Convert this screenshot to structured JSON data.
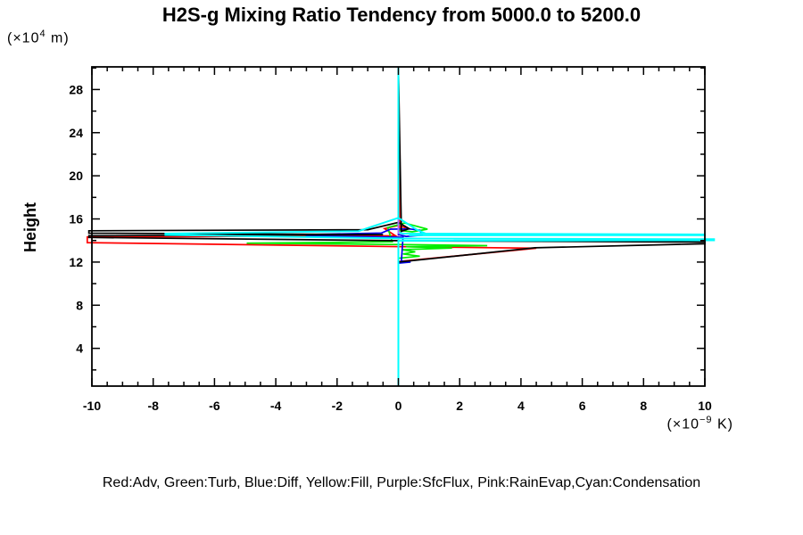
{
  "figure": {
    "title": "H2S-g Mixing Ratio Tendency from 5000.0 to 5200.0",
    "y_axis_title": "Height",
    "y_axis_unit": {
      "pre": "(×10",
      "sup": "4",
      "post": " m)"
    },
    "x_axis_unit": {
      "pre": "(×10",
      "sup": "−9",
      "post": " K)"
    },
    "legend_caption": "Red:Adv, Green:Turb, Blue:Diff, Yellow:Fill, Purple:SfcFlux, Pink:RainEvap,Cyan:Condensation"
  },
  "chart_data": {
    "type": "line",
    "title": "H2S-g Mixing Ratio Tendency from 5000.0 to 5200.0",
    "xlabel": "(x10^-9 K)",
    "ylabel": "Height (x10^4 m)",
    "xlim": [
      -10,
      10
    ],
    "ylim": [
      0.5,
      30.1
    ],
    "grid": false,
    "legend_position": "bottom-caption",
    "x_ticks": {
      "major": [
        -10,
        -8,
        -6,
        -4,
        -2,
        0,
        2,
        4,
        6,
        8,
        10
      ],
      "labels": [
        "-10",
        "-8",
        "-6",
        "-4",
        "-2",
        "0",
        "2",
        "4",
        "6",
        "8",
        "10"
      ],
      "minor_step": 0.5
    },
    "y_ticks": {
      "major": [
        4,
        8,
        12,
        16,
        20,
        24,
        28
      ],
      "labels": [
        "4",
        "8",
        "12",
        "16",
        "20",
        "24",
        "28"
      ],
      "minor": [
        2,
        6,
        10,
        14,
        18,
        22,
        26,
        30
      ]
    },
    "draw_order": [
      "Fill",
      "RainEvap",
      "Adv",
      "Turb",
      "Diff",
      "Black",
      "Condensation",
      "SfcFlux"
    ],
    "series": [
      {
        "name": "Adv",
        "legend_label": "Red:Adv",
        "color_name": "Red",
        "color": "#ff0000",
        "width": 1.7,
        "points": [
          [
            0,
            0.5
          ],
          [
            0,
            12.05
          ],
          [
            4.5,
            13.28
          ],
          [
            0.2,
            13.42
          ],
          [
            -10.15,
            13.8
          ],
          [
            -10.15,
            14.32
          ],
          [
            -0.1,
            14.45
          ],
          [
            -0.45,
            15.1
          ],
          [
            0,
            15.4
          ],
          [
            0.3,
            15.12
          ],
          [
            0.05,
            14.9
          ],
          [
            0,
            30.1
          ]
        ]
      },
      {
        "name": "Turb",
        "legend_label": "Green:Turb",
        "color_name": "Green",
        "color": "#00ee00",
        "width": 1.7,
        "points": [
          [
            0,
            0.5
          ],
          [
            0,
            12.35
          ],
          [
            0.7,
            12.55
          ],
          [
            0.15,
            12.75
          ],
          [
            0.55,
            12.95
          ],
          [
            0.1,
            13.15
          ],
          [
            1.75,
            13.3
          ],
          [
            0.25,
            13.42
          ],
          [
            2.9,
            13.52
          ],
          [
            0.2,
            13.62
          ],
          [
            -4.95,
            13.75
          ],
          [
            -0.2,
            13.88
          ],
          [
            -0.35,
            15.2
          ],
          [
            0.2,
            15.62
          ],
          [
            0.95,
            15.05
          ],
          [
            0.45,
            14.8
          ],
          [
            0,
            14.95
          ],
          [
            0,
            30.1
          ]
        ]
      },
      {
        "name": "Diff",
        "legend_label": "Blue:Diff",
        "color_name": "Blue",
        "color": "#0000ee",
        "width": 1.7,
        "points": [
          [
            0,
            0.5
          ],
          [
            0,
            11.9
          ],
          [
            0.4,
            12.0
          ],
          [
            0.1,
            12.1
          ],
          [
            0.15,
            14.3
          ],
          [
            -3.0,
            14.42
          ],
          [
            -3.0,
            14.55
          ],
          [
            -0.55,
            14.7
          ],
          [
            -0.25,
            15.05
          ],
          [
            0.35,
            15.08
          ],
          [
            0.7,
            14.95
          ],
          [
            0.78,
            14.5
          ],
          [
            0.25,
            14.38
          ],
          [
            0,
            14.55
          ],
          [
            0,
            30.1
          ]
        ]
      },
      {
        "name": "Fill",
        "legend_label": "Yellow:Fill",
        "color_name": "Yellow",
        "color": "#ffff00",
        "width": 1.6,
        "points": [
          [
            0,
            0.5
          ],
          [
            0,
            30.1
          ]
        ]
      },
      {
        "name": "SfcFlux",
        "legend_label": "Purple:SfcFlux",
        "color_name": "Purple",
        "color": "#b36bff",
        "width": 1.8,
        "points": [
          [
            0,
            14.6
          ],
          [
            0,
            15.95
          ]
        ]
      },
      {
        "name": "RainEvap",
        "legend_label": "Pink:RainEvap",
        "color_name": "Pink",
        "color": "#ff85c2",
        "width": 1.6,
        "points": [
          [
            0,
            13.4
          ],
          [
            0,
            14.6
          ]
        ]
      },
      {
        "name": "Condensation",
        "legend_label": "Cyan:Condensation",
        "color_name": "Cyan",
        "color": "#00ffff",
        "width": 2,
        "points": [
          [
            0,
            0.5
          ],
          [
            0,
            13.98
          ],
          [
            10.3,
            14.02
          ],
          [
            10.3,
            14.12
          ],
          [
            0.2,
            14.18
          ],
          [
            -7.6,
            14.52
          ],
          [
            -7.6,
            14.64
          ],
          [
            -1.3,
            14.87
          ],
          [
            0,
            16.1
          ],
          [
            0.6,
            15.0
          ],
          [
            0.9,
            14.62
          ],
          [
            0.35,
            14.48
          ],
          [
            10,
            14.5
          ],
          [
            10,
            14.56
          ],
          [
            0.15,
            14.64
          ],
          [
            0,
            14.75
          ],
          [
            0,
            30.1
          ]
        ]
      },
      {
        "name": "Black",
        "legend_label": "",
        "color_name": "Black",
        "color": "#000000",
        "width": 1.7,
        "points": [
          [
            0,
            0.5
          ],
          [
            0,
            12.0
          ],
          [
            4.45,
            13.32
          ],
          [
            10,
            13.7
          ],
          [
            10,
            13.85
          ],
          [
            0.3,
            13.98
          ],
          [
            -10.1,
            14.28
          ],
          [
            -10.1,
            14.44
          ],
          [
            -0.5,
            14.55
          ],
          [
            -10.1,
            14.68
          ],
          [
            -10.1,
            14.9
          ],
          [
            -1.0,
            15.0
          ],
          [
            0,
            15.68
          ],
          [
            0.35,
            15.1
          ],
          [
            0.1,
            14.85
          ],
          [
            0,
            30.1
          ]
        ]
      }
    ]
  }
}
